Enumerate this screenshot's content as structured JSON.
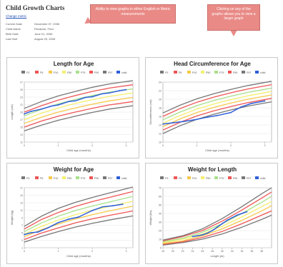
{
  "header": {
    "title": "Child Growth Charts",
    "change_units_link": "Change metric",
    "info": [
      {
        "label": "Current Date",
        "value": "December 07, 2006"
      },
      {
        "label": "Child Name",
        "value": "Fitzalune, Fred"
      },
      {
        "label": "Birth Date",
        "value": "June 01, 2006"
      },
      {
        "label": "Last Visit",
        "value": "August 29, 2006"
      }
    ]
  },
  "callouts": {
    "units": "Ability to view graphs in either English or Metric measurements",
    "enlarge": "Clicking on any of the graphs allows you to view a larger graph"
  },
  "legend": {
    "labels": [
      "P3",
      "P5",
      "P10",
      "P50",
      "P75",
      "P90",
      "P97",
      "child"
    ],
    "colors": [
      "#777777",
      "#ee5555",
      "#f6c84a",
      "#f4ef6e",
      "#a7e08a",
      "#ee5555",
      "#777777",
      "#2e5fd9"
    ]
  },
  "chart_data": [
    {
      "type": "line",
      "title": "Length for Age",
      "xlabel": "Child age (months)",
      "ylabel": "Length (cm)",
      "x_ticks": [
        "0",
        "1",
        "2",
        "3"
      ],
      "y_ticks": [
        "11",
        "13",
        "15",
        "17",
        "19",
        "21",
        "23",
        "25",
        "27"
      ],
      "xlim": [
        0,
        3.2
      ],
      "ylim": [
        11,
        27
      ],
      "percentile_x": [
        0,
        0.5,
        1,
        1.5,
        2,
        2.5,
        3.2
      ],
      "percentiles": [
        [
          14.0,
          15.5,
          16.8,
          17.9,
          18.9,
          19.8,
          20.7
        ],
        [
          15.0,
          16.6,
          17.9,
          19.0,
          20.0,
          20.9,
          21.8
        ],
        [
          16.0,
          17.6,
          19.0,
          20.1,
          21.1,
          22.0,
          22.9
        ],
        [
          17.0,
          18.7,
          20.1,
          21.3,
          22.3,
          23.2,
          24.1
        ],
        [
          18.0,
          19.7,
          21.2,
          22.4,
          23.4,
          24.3,
          25.2
        ],
        [
          19.0,
          20.7,
          22.2,
          23.4,
          24.5,
          25.4,
          26.3
        ],
        [
          20.0,
          21.8,
          23.3,
          24.5,
          25.6,
          26.5,
          27.4
        ]
      ],
      "child_x": [
        0,
        0.2,
        0.5,
        0.8,
        1.0,
        1.3,
        1.5,
        1.8,
        2.0,
        2.3,
        2.5,
        2.8,
        3.0
      ],
      "child_y": [
        18.5,
        19.2,
        19.8,
        20.6,
        20.9,
        21.8,
        22.0,
        22.9,
        23.1,
        23.9,
        24.1,
        24.7,
        25.0
      ]
    },
    {
      "type": "line",
      "title": "Head Circumference for Age",
      "xlabel": "Child age (months)",
      "ylabel": "Circumference (cm)",
      "x_ticks": [
        "0",
        "1",
        "2",
        "3"
      ],
      "y_ticks": [
        "10",
        "12",
        "14",
        "16",
        "18",
        "20",
        "22",
        "24"
      ],
      "xlim": [
        0,
        3.2
      ],
      "ylim": [
        10,
        24
      ],
      "percentile_x": [
        0,
        0.5,
        1,
        1.5,
        2,
        2.5,
        3.2
      ],
      "percentiles": [
        [
          12.0,
          13.8,
          15.3,
          16.5,
          17.5,
          18.4,
          19.4
        ],
        [
          12.8,
          14.6,
          16.1,
          17.3,
          18.3,
          19.2,
          20.2
        ],
        [
          13.6,
          15.4,
          16.9,
          18.1,
          19.1,
          20.0,
          21.0
        ],
        [
          14.4,
          16.2,
          17.7,
          18.9,
          19.9,
          20.8,
          21.8
        ],
        [
          15.2,
          17.0,
          18.5,
          19.7,
          20.7,
          21.6,
          22.6
        ],
        [
          16.0,
          17.8,
          19.3,
          20.5,
          21.5,
          22.4,
          23.4
        ],
        [
          16.8,
          18.6,
          20.1,
          21.3,
          22.3,
          23.2,
          24.2
        ]
      ],
      "child_x": [
        0,
        0.3,
        0.6,
        1.0,
        1.3,
        1.6,
        2.0,
        2.3,
        2.6,
        3.0
      ],
      "child_y": [
        14.2,
        14.5,
        14.8,
        15.3,
        15.8,
        16.2,
        16.9,
        18.2,
        19.0,
        19.6
      ]
    },
    {
      "type": "line",
      "title": "Weight for Age",
      "xlabel": "Child age (months)",
      "ylabel": "Weight (kg)",
      "x_ticks": [
        "0",
        "1",
        "2",
        "3"
      ],
      "y_ticks": [
        "1",
        "3",
        "5",
        "7",
        "9",
        "11",
        "13",
        "15",
        "17"
      ],
      "xlim": [
        0,
        3.2
      ],
      "ylim": [
        1,
        17
      ],
      "percentile_x": [
        0,
        0.5,
        1,
        1.5,
        2,
        2.5,
        3.2
      ],
      "percentiles": [
        [
          2.5,
          4.0,
          5.3,
          6.5,
          7.5,
          8.4,
          9.5
        ],
        [
          3.2,
          4.9,
          6.3,
          7.6,
          8.7,
          9.6,
          10.8
        ],
        [
          3.9,
          5.8,
          7.3,
          8.7,
          9.8,
          10.8,
          12.1
        ],
        [
          4.6,
          6.7,
          8.4,
          9.8,
          11.0,
          12.0,
          13.4
        ],
        [
          5.3,
          7.6,
          9.4,
          10.9,
          12.1,
          13.2,
          14.7
        ],
        [
          6.0,
          8.5,
          10.4,
          12.0,
          13.3,
          14.4,
          16.0
        ],
        [
          6.7,
          9.4,
          11.5,
          13.1,
          14.4,
          15.6,
          17.2
        ]
      ],
      "child_x": [
        0,
        0.2,
        0.4,
        0.7,
        1.0,
        1.3,
        1.6,
        2.0,
        2.3,
        2.6,
        2.9
      ],
      "child_y": [
        4.5,
        5.0,
        5.2,
        6.3,
        7.7,
        8.6,
        9.2,
        10.9,
        11.9,
        12.2,
        12.6
      ]
    },
    {
      "type": "line",
      "title": "Weight for Length",
      "xlabel": "Length (in)",
      "ylabel": "Weight (lbs)",
      "x_ticks": [
        "18",
        "20",
        "22",
        "24",
        "26",
        "28",
        "30",
        "32",
        "34",
        "36",
        "38"
      ],
      "y_ticks": [
        "0",
        "10",
        "20",
        "30",
        "40",
        "50",
        "60",
        "70"
      ],
      "xlim": [
        18,
        40
      ],
      "ylim": [
        0,
        70
      ],
      "percentile_x": [
        18,
        22,
        26,
        30,
        34,
        38,
        40
      ],
      "percentiles": [
        [
          3,
          6,
          10,
          16,
          24,
          33,
          38
        ],
        [
          4,
          7,
          12,
          19,
          28,
          38,
          43
        ],
        [
          5,
          8,
          14,
          22,
          32,
          43,
          49
        ],
        [
          6,
          10,
          16,
          25,
          36,
          48,
          54
        ],
        [
          7,
          11,
          18,
          28,
          40,
          53,
          60
        ],
        [
          8,
          13,
          20,
          31,
          44,
          58,
          65
        ],
        [
          9,
          14,
          22,
          34,
          48,
          63,
          70
        ]
      ],
      "child_x": [
        24,
        25,
        26,
        27,
        28,
        29,
        30,
        31,
        32,
        33,
        34,
        35
      ],
      "child_y": [
        13,
        14,
        15,
        17,
        20,
        24,
        28,
        32,
        35,
        38,
        40,
        42
      ]
    }
  ]
}
